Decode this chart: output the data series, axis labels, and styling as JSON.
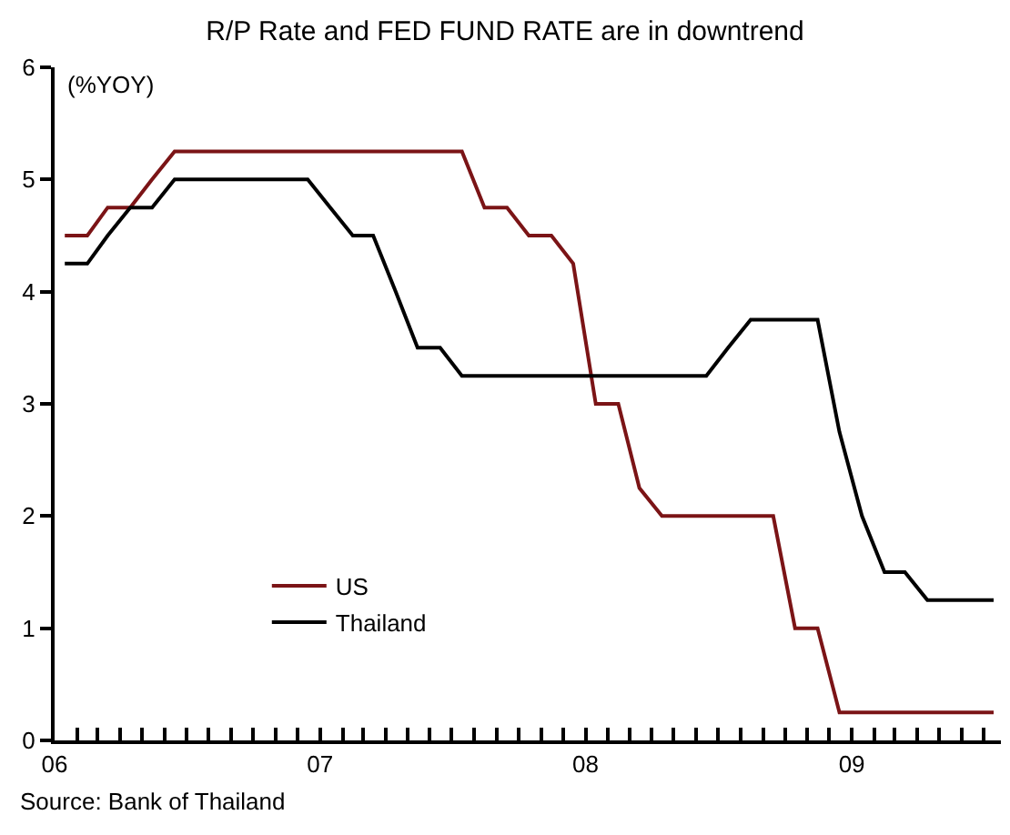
{
  "chart_data": {
    "type": "line",
    "title": "R/P Rate and FED FUND RATE are in downtrend",
    "ylabel": "(%YOY)",
    "annotations": [
      "Source: Bank of Thailand"
    ],
    "x": [
      "2006-01-15",
      "2006-02-15",
      "2006-03-15",
      "2006-04-15",
      "2006-05-15",
      "2006-06-15",
      "2006-07-15",
      "2006-08-15",
      "2006-09-15",
      "2006-10-15",
      "2006-11-15",
      "2006-12-15",
      "2007-01-15",
      "2007-02-15",
      "2007-03-15",
      "2007-04-15",
      "2007-05-15",
      "2007-06-15",
      "2007-07-15",
      "2007-08-15",
      "2007-09-15",
      "2007-10-15",
      "2007-11-15",
      "2007-12-15",
      "2008-01-15",
      "2008-02-15",
      "2008-03-15",
      "2008-04-15",
      "2008-05-15",
      "2008-06-15",
      "2008-07-15",
      "2008-08-15",
      "2008-09-15",
      "2008-10-15",
      "2008-11-15",
      "2008-12-15",
      "2009-01-15",
      "2009-02-15",
      "2009-03-15",
      "2009-04-15",
      "2009-05-15",
      "2009-06-15",
      "2009-07-15"
    ],
    "series": [
      {
        "name": "US",
        "color": "#7b1416",
        "values": [
          4.5,
          4.5,
          4.75,
          4.75,
          5.0,
          5.25,
          5.25,
          5.25,
          5.25,
          5.25,
          5.25,
          5.25,
          5.25,
          5.25,
          5.25,
          5.25,
          5.25,
          5.25,
          5.25,
          4.75,
          4.75,
          4.5,
          4.5,
          4.25,
          3.0,
          3.0,
          2.25,
          2.0,
          2.0,
          2.0,
          2.0,
          2.0,
          2.0,
          1.0,
          1.0,
          0.25,
          0.25,
          0.25,
          0.25,
          0.25,
          0.25,
          0.25,
          0.25
        ]
      },
      {
        "name": "Thailand",
        "color": "#000000",
        "values": [
          4.25,
          4.25,
          4.5,
          4.75,
          4.75,
          5.0,
          5.0,
          5.0,
          5.0,
          5.0,
          5.0,
          5.0,
          4.75,
          4.5,
          4.5,
          4.0,
          3.5,
          3.5,
          3.25,
          3.25,
          3.25,
          3.25,
          3.25,
          3.25,
          3.25,
          3.25,
          3.25,
          3.25,
          3.25,
          3.25,
          3.5,
          3.75,
          3.75,
          3.75,
          3.75,
          2.75,
          2.0,
          1.5,
          1.5,
          1.25,
          1.25,
          1.25,
          1.25
        ]
      }
    ],
    "xlim": [
      "2006-01-01",
      "2009-07-25"
    ],
    "xticks": [
      {
        "value": "2006-01-01",
        "label": "06"
      },
      {
        "value": "2006-02-01",
        "label": null
      },
      {
        "value": "2006-03-01",
        "label": null
      },
      {
        "value": "2006-04-01",
        "label": null
      },
      {
        "value": "2006-05-01",
        "label": null
      },
      {
        "value": "2006-06-01",
        "label": null
      },
      {
        "value": "2006-07-01",
        "label": null
      },
      {
        "value": "2006-08-01",
        "label": null
      },
      {
        "value": "2006-09-01",
        "label": null
      },
      {
        "value": "2006-10-01",
        "label": null
      },
      {
        "value": "2006-11-01",
        "label": null
      },
      {
        "value": "2006-12-01",
        "label": null
      },
      {
        "value": "2007-01-01",
        "label": "07"
      },
      {
        "value": "2007-02-01",
        "label": null
      },
      {
        "value": "2007-03-01",
        "label": null
      },
      {
        "value": "2007-04-01",
        "label": null
      },
      {
        "value": "2007-05-01",
        "label": null
      },
      {
        "value": "2007-06-01",
        "label": null
      },
      {
        "value": "2007-07-01",
        "label": null
      },
      {
        "value": "2007-08-01",
        "label": null
      },
      {
        "value": "2007-09-01",
        "label": null
      },
      {
        "value": "2007-10-01",
        "label": null
      },
      {
        "value": "2007-11-01",
        "label": null
      },
      {
        "value": "2007-12-01",
        "label": null
      },
      {
        "value": "2008-01-01",
        "label": "08"
      },
      {
        "value": "2008-02-01",
        "label": null
      },
      {
        "value": "2008-03-01",
        "label": null
      },
      {
        "value": "2008-04-01",
        "label": null
      },
      {
        "value": "2008-05-01",
        "label": null
      },
      {
        "value": "2008-06-01",
        "label": null
      },
      {
        "value": "2008-07-01",
        "label": null
      },
      {
        "value": "2008-08-01",
        "label": null
      },
      {
        "value": "2008-09-01",
        "label": null
      },
      {
        "value": "2008-10-01",
        "label": null
      },
      {
        "value": "2008-11-01",
        "label": null
      },
      {
        "value": "2008-12-01",
        "label": null
      },
      {
        "value": "2009-01-01",
        "label": "09"
      },
      {
        "value": "2009-02-01",
        "label": null
      },
      {
        "value": "2009-03-01",
        "label": null
      },
      {
        "value": "2009-04-01",
        "label": null
      },
      {
        "value": "2009-05-01",
        "label": null
      },
      {
        "value": "2009-06-01",
        "label": null
      },
      {
        "value": "2009-07-01",
        "label": null
      }
    ],
    "ylim": [
      0,
      6
    ],
    "yticks": [
      0,
      1,
      2,
      3,
      4,
      5,
      6
    ],
    "grid": false,
    "legend": "bottom left",
    "marker": "none",
    "line_style": "solid"
  }
}
